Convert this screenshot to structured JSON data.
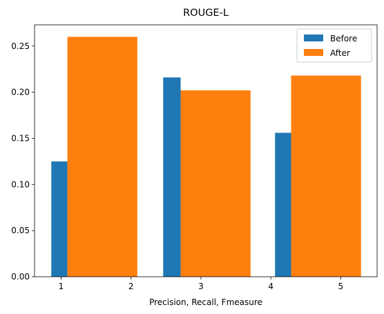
{
  "chart_data": {
    "type": "bar",
    "title": "ROUGE-L",
    "xlabel": "Precision, Recall, Fmeasure",
    "ylabel": "",
    "xlim": [
      0.62,
      5.52
    ],
    "ylim": [
      0,
      0.273
    ],
    "xticks": [
      1,
      2,
      3,
      4,
      5
    ],
    "yticks": [
      0.0,
      0.05,
      0.1,
      0.15,
      0.2,
      0.25
    ],
    "ytick_labels": [
      "0.00",
      "0.05",
      "0.10",
      "0.15",
      "0.20",
      "0.25"
    ],
    "grid": false,
    "legend_position": "top-right",
    "series": [
      {
        "name": "Before",
        "color": "#1f77b4",
        "bars": [
          {
            "x_start": 0.86,
            "x_end": 1.09,
            "value": 0.125
          },
          {
            "x_start": 2.46,
            "x_end": 2.71,
            "value": 0.216
          },
          {
            "x_start": 4.06,
            "x_end": 4.29,
            "value": 0.156
          }
        ]
      },
      {
        "name": "After",
        "color": "#ff7f0e",
        "bars": [
          {
            "x_start": 1.09,
            "x_end": 2.09,
            "value": 0.26
          },
          {
            "x_start": 2.71,
            "x_end": 3.71,
            "value": 0.202
          },
          {
            "x_start": 4.29,
            "x_end": 5.29,
            "value": 0.218
          }
        ]
      }
    ]
  }
}
